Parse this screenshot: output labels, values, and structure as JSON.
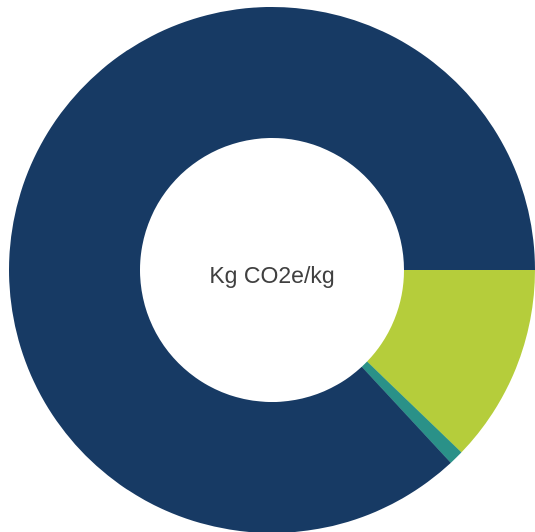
{
  "chart_data": {
    "type": "donut",
    "center_label": "Kg CO2e/kg",
    "categories": [
      null,
      null,
      null
    ],
    "values": [
      12.2,
      0.9,
      86.9
    ],
    "colors": [
      "#b5cd3b",
      "#2a9188",
      "#173a64"
    ]
  }
}
